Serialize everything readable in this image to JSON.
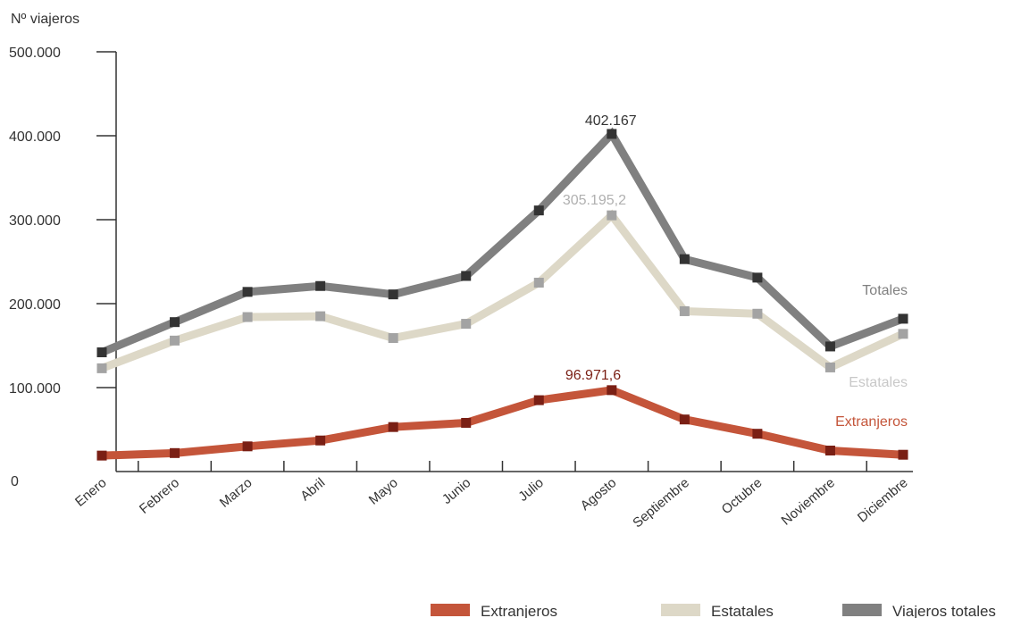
{
  "chart_data": {
    "type": "line",
    "ylabel": "Nº viajeros",
    "ylim": [
      0,
      500000
    ],
    "yticks": [
      0,
      100000,
      200000,
      300000,
      400000,
      500000
    ],
    "ytick_labels": [
      "0",
      "100.000",
      "200.000",
      "300.000",
      "400.000",
      "500.000"
    ],
    "categories": [
      "Enero",
      "Febrero",
      "Marzo",
      "Abril",
      "Mayo",
      "Junio",
      "Julio",
      "Agosto",
      "Septiembre",
      "Octubre",
      "Noviembre",
      "Diciembre"
    ],
    "series": [
      {
        "name": "Extranjeros",
        "color": "#c4553a",
        "marker_color": "#7a1f14",
        "end_label": "Extranjeros",
        "values": [
          19000,
          22000,
          30000,
          37000,
          53000,
          58000,
          85000,
          96971.6,
          62000,
          45000,
          25000,
          20000
        ],
        "peak_label": "96.971,6"
      },
      {
        "name": "Estatales",
        "color": "#ddd8c7",
        "marker_color": "#a3a3a3",
        "end_label": "Estatales",
        "values": [
          123000,
          156000,
          184000,
          185000,
          159000,
          176000,
          225000,
          305195.2,
          191000,
          188000,
          124000,
          164000
        ],
        "peak_label": "305.195,2"
      },
      {
        "name": "Viajeros totales",
        "color": "#808080",
        "marker_color": "#333333",
        "end_label": "Totales",
        "values": [
          142000,
          178000,
          214000,
          221000,
          211000,
          233000,
          311000,
          402167,
          253000,
          231000,
          149000,
          182000
        ],
        "peak_label": "402.167"
      }
    ],
    "legend": {
      "placement": "bottom-right",
      "items": [
        "Extranjeros",
        "Estatales",
        "Viajeros totales"
      ]
    },
    "grid": false
  }
}
